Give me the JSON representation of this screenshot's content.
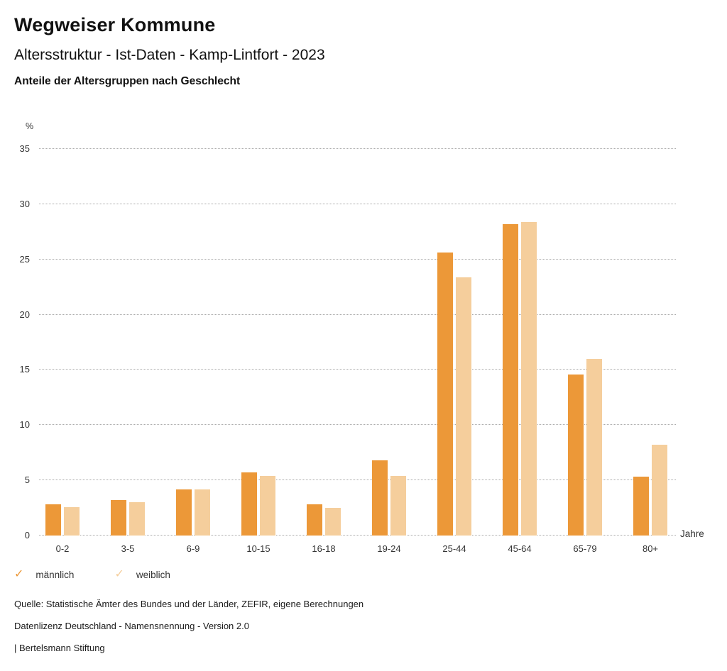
{
  "header": {
    "title": "Wegweiser Kommune",
    "subtitle": "Altersstruktur - Ist-Daten - Kamp-Lintfort - 2023",
    "caption": "Anteile der Altersgruppen nach Geschlecht"
  },
  "chart_data": {
    "type": "bar",
    "title": "Anteile der Altersgruppen nach Geschlecht",
    "categories": [
      "0-2",
      "3-5",
      "6-9",
      "10-15",
      "16-18",
      "19-24",
      "25-44",
      "45-64",
      "65-79",
      "80+"
    ],
    "series": [
      {
        "name": "männlich",
        "color": "#EC9838",
        "values": [
          2.8,
          3.2,
          4.2,
          5.7,
          2.8,
          6.8,
          25.6,
          28.2,
          14.6,
          5.3
        ]
      },
      {
        "name": "weiblich",
        "color": "#F5CE9C",
        "values": [
          2.6,
          3.0,
          4.2,
          5.4,
          2.5,
          5.4,
          23.4,
          28.4,
          16.0,
          8.2
        ]
      }
    ],
    "xlabel": "Jahre",
    "ylabel": "%",
    "ylim": [
      0,
      35
    ],
    "ytick_step": 5,
    "grid": true,
    "gridline_style": "dotted",
    "legend_position": "bottom",
    "legend_icon": "check"
  },
  "legend": {
    "check_glyph": "✓"
  },
  "footer": {
    "source": "Quelle: Statistische Ämter des Bundes und der Länder, ZEFIR, eigene Berechnungen",
    "license": "Datenlizenz Deutschland - Namensnennung - Version 2.0",
    "attribution": "| Bertelsmann Stiftung"
  }
}
